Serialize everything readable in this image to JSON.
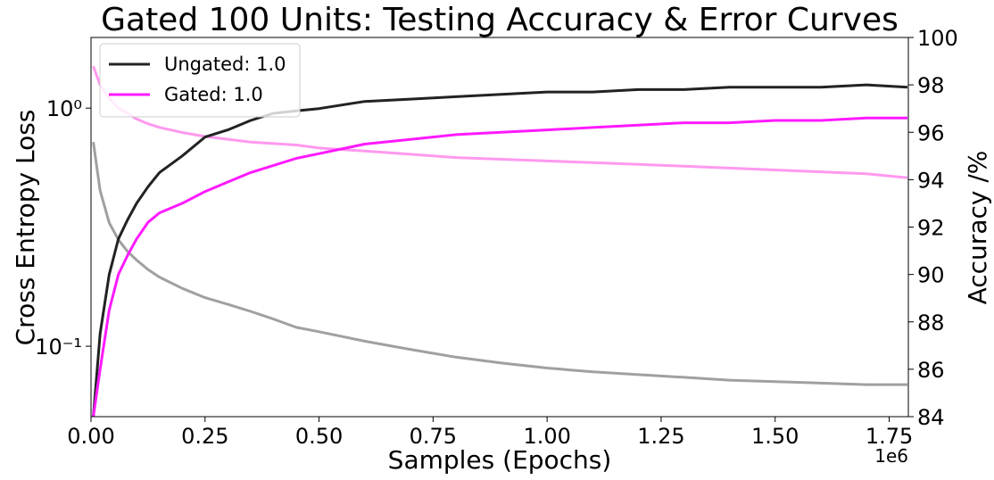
{
  "chart_data": {
    "type": "line",
    "title": "Gated 100 Units: Testing Accuracy & Error Curves",
    "x_label": "Samples (Epochs)",
    "x_offset_label": "1e6",
    "y_label": "Cross Entropy Loss",
    "y2_label": "Accuracy /%",
    "y_log": true,
    "legend": "upper left",
    "x": [
      5000,
      20000,
      40000,
      60000,
      80000,
      100000,
      125000,
      150000,
      200000,
      250000,
      300000,
      350000,
      400000,
      450000,
      500000,
      600000,
      700000,
      800000,
      900000,
      1000000,
      1100000,
      1200000,
      1300000,
      1400000,
      1500000,
      1600000,
      1700000,
      1790000
    ],
    "xlim": [
      0,
      1792000
    ],
    "xticks": [
      {
        "value": 0,
        "label": "0.00"
      },
      {
        "value": 250000,
        "label": "0.25"
      },
      {
        "value": 500000,
        "label": "0.50"
      },
      {
        "value": 750000,
        "label": "0.75"
      },
      {
        "value": 1000000,
        "label": "1.00"
      },
      {
        "value": 1250000,
        "label": "1.25"
      },
      {
        "value": 1500000,
        "label": "1.50"
      },
      {
        "value": 1750000,
        "label": "1.75"
      }
    ],
    "ylim": [
      0.0506,
      1.98
    ],
    "yticks": [
      {
        "value": 0.1,
        "label": "10⁻¹"
      },
      {
        "value": 1,
        "label": "10⁰"
      }
    ],
    "y2lim": [
      84,
      100
    ],
    "y2ticks": [
      84,
      86,
      88,
      90,
      92,
      94,
      96,
      98,
      100
    ],
    "series": [
      {
        "color": "#a0a0a0",
        "values": [
          0.72,
          0.45,
          0.33,
          0.28,
          0.25,
          0.23,
          0.21,
          0.195,
          0.175,
          0.16,
          0.15,
          0.14,
          0.13,
          0.12,
          0.115,
          0.105,
          0.097,
          0.09,
          0.085,
          0.081,
          0.078,
          0.076,
          0.074,
          0.072,
          0.071,
          0.07,
          0.069,
          0.069
        ]
      },
      {
        "color": "#ff99ee",
        "values": [
          1.5,
          1.25,
          1.1,
          1.0,
          0.95,
          0.9,
          0.86,
          0.83,
          0.79,
          0.76,
          0.74,
          0.72,
          0.71,
          0.7,
          0.68,
          0.66,
          0.64,
          0.62,
          0.61,
          0.6,
          0.59,
          0.58,
          0.57,
          0.56,
          0.55,
          0.54,
          0.53,
          0.51
        ]
      },
      {
        "name": "Ungated: 1.0",
        "color": "#222222",
        "axis": "y2",
        "values": [
          84,
          87.5,
          90,
          91.5,
          92.3,
          93,
          93.7,
          94.3,
          95,
          95.8,
          96.1,
          96.5,
          96.8,
          96.9,
          97.0,
          97.3,
          97.4,
          97.5,
          97.6,
          97.7,
          97.7,
          97.8,
          97.8,
          97.9,
          97.9,
          97.9,
          98.0,
          97.9
        ]
      },
      {
        "name": "Gated: 1.0",
        "color": "#ff1aff",
        "axis": "y2",
        "values": [
          84,
          86,
          88.5,
          90,
          90.8,
          91.5,
          92.2,
          92.6,
          93.0,
          93.5,
          93.9,
          94.3,
          94.6,
          94.9,
          95.1,
          95.5,
          95.7,
          95.9,
          96.0,
          96.1,
          96.2,
          96.3,
          96.4,
          96.4,
          96.5,
          96.5,
          96.6,
          96.6
        ]
      }
    ]
  }
}
